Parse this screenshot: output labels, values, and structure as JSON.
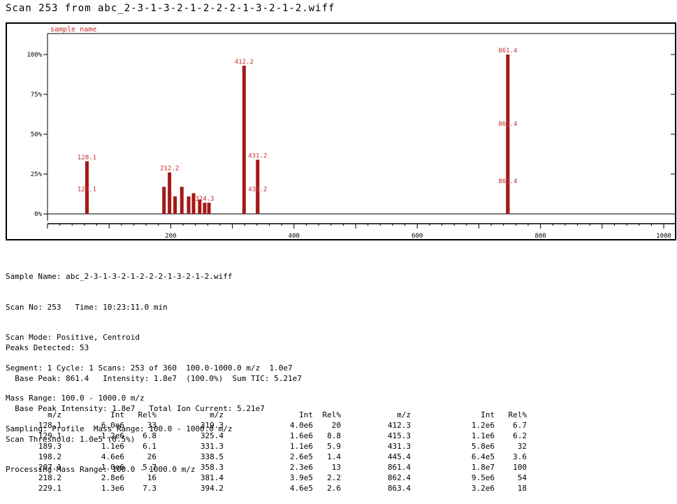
{
  "title": "Scan 253 from abc_2-3-1-3-2-1-2-2-2-1-3-2-1-2.wiff",
  "chart_data": {
    "type": "bar",
    "subtitle": "sample name",
    "xlim": [
      0,
      1000
    ],
    "ylim": [
      0,
      100
    ],
    "x_tick_labels": [
      "200",
      "400",
      "600",
      "800",
      "1000"
    ],
    "x_tick_values": [
      200,
      400,
      600,
      800,
      1000
    ],
    "y_tick_labels": [
      "100%",
      "75%",
      "50%",
      "25%",
      "0%"
    ],
    "y_tick_values": [
      100,
      75,
      50,
      25,
      0
    ],
    "peaks": [
      {
        "x": 64,
        "y": 33,
        "label": "128.1"
      },
      {
        "x": 64,
        "y": 13,
        "label": "128.1"
      },
      {
        "x": 189,
        "y": 17
      },
      {
        "x": 198,
        "y": 26,
        "label": "212.2"
      },
      {
        "x": 207,
        "y": 11
      },
      {
        "x": 218,
        "y": 17
      },
      {
        "x": 229,
        "y": 11
      },
      {
        "x": 237,
        "y": 13
      },
      {
        "x": 247,
        "y": 9
      },
      {
        "x": 255,
        "y": 7,
        "label": "324.3"
      },
      {
        "x": 262,
        "y": 7
      },
      {
        "x": 319,
        "y": 93,
        "label": "412.2"
      },
      {
        "x": 341,
        "y": 34,
        "label": "431.2"
      },
      {
        "x": 341,
        "y": 13,
        "label": "431.2"
      },
      {
        "x": 747,
        "y": 100,
        "label": "861.4"
      },
      {
        "x": 747,
        "y": 54,
        "label": "862.4"
      },
      {
        "x": 747,
        "y": 18,
        "label": "863.4"
      }
    ]
  },
  "info_lines": [
    "Sample Name: abc_2-3-1-3-2-1-2-2-2-1-3-2-1-2.wiff",
    "Scan No: 253   Time: 10:23:11.0 min",
    "Scan Mode: Positive, Centroid",
    "Segment: 1 Cycle: 1 Scans: 253 of 360  100.0-1000.0 m/z  1.0e7",
    "Mass Range: 100.0 - 1000.0 m/z",
    "Sampling: Profile  Mass Range: 100.0 - 1000.0 m/z"
  ],
  "summary_lines": [
    "Peaks Detected: 53",
    "  Base Peak: 861.4   Intensity: 1.8e7  (100.0%)  Sum TIC: 5.21e7",
    "  Base Peak Intensity: 1.8e7   Total Ion Current: 5.21e7",
    "Scan Threshold: 1.0e5 (0.5%)",
    "Processing Mass Range: 100.0 - 1000.0 m/z"
  ],
  "table": {
    "headers": [
      "m/z",
      "Int",
      "Rel%",
      "m/z",
      "Int",
      "Rel%",
      "m/z",
      "Int",
      "Rel%"
    ],
    "rows": [
      [
        "128.1",
        "6.0e6",
        "33",
        "319.3",
        "4.0e6",
        "20",
        "412.3",
        "1.2e6",
        "6.7"
      ],
      [
        "129.1",
        "1.2e6",
        "6.8",
        "325.4",
        "1.6e6",
        "8.8",
        "415.3",
        "1.1e6",
        "6.2"
      ],
      [
        "189.3",
        "1.1e6",
        "6.1",
        "331.3",
        "1.1e6",
        "5.9",
        "431.3",
        "5.8e6",
        "32"
      ],
      [
        "198.2",
        "4.6e6",
        "26",
        "338.5",
        "2.6e5",
        "1.4",
        "445.4",
        "6.4e5",
        "3.6"
      ],
      [
        "207.1",
        "1.0e6",
        "5.7",
        "358.3",
        "2.3e6",
        "13",
        "861.4",
        "1.8e7",
        "100"
      ],
      [
        "218.2",
        "2.8e6",
        "16",
        "381.4",
        "3.9e5",
        "2.2",
        "862.4",
        "9.5e6",
        "54"
      ],
      [
        "229.1",
        "1.3e6",
        "7.3",
        "394.2",
        "4.6e5",
        "2.6",
        "863.4",
        "3.2e6",
        "18"
      ]
    ]
  },
  "colors": {
    "peak": "#a61818",
    "label": "#c22a2a",
    "axis": "#000000"
  }
}
